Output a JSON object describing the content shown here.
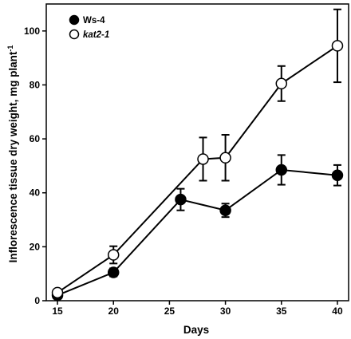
{
  "chart_data": {
    "type": "line",
    "xlabel": "Days",
    "ylabel": "Inflorescence tissue dry weight, mg plant",
    "ylabel_superscript": "-1",
    "xlim": [
      14,
      41
    ],
    "ylim": [
      0,
      110
    ],
    "xticks": [
      15,
      20,
      25,
      30,
      35,
      40
    ],
    "yticks": [
      0,
      20,
      40,
      60,
      80,
      100
    ],
    "grid": false,
    "legend_position": "top-left",
    "series": [
      {
        "name": "Ws-4",
        "marker": "filled-circle",
        "color": "#000000",
        "x": [
          15,
          20,
          26,
          30,
          35,
          40
        ],
        "y": [
          2,
          10.5,
          37.5,
          33.5,
          48.5,
          46.5
        ],
        "err": [
          0,
          1.5,
          4,
          2.5,
          5.5,
          3.8
        ]
      },
      {
        "name": "kat2-1",
        "name_italic": true,
        "marker": "open-circle",
        "color": "#000000",
        "x": [
          15,
          20,
          28,
          30,
          35,
          40
        ],
        "y": [
          3,
          17,
          52.5,
          53,
          80.5,
          94.5
        ],
        "err": [
          0,
          3.2,
          8,
          8.5,
          6.5,
          13.5
        ]
      }
    ]
  }
}
